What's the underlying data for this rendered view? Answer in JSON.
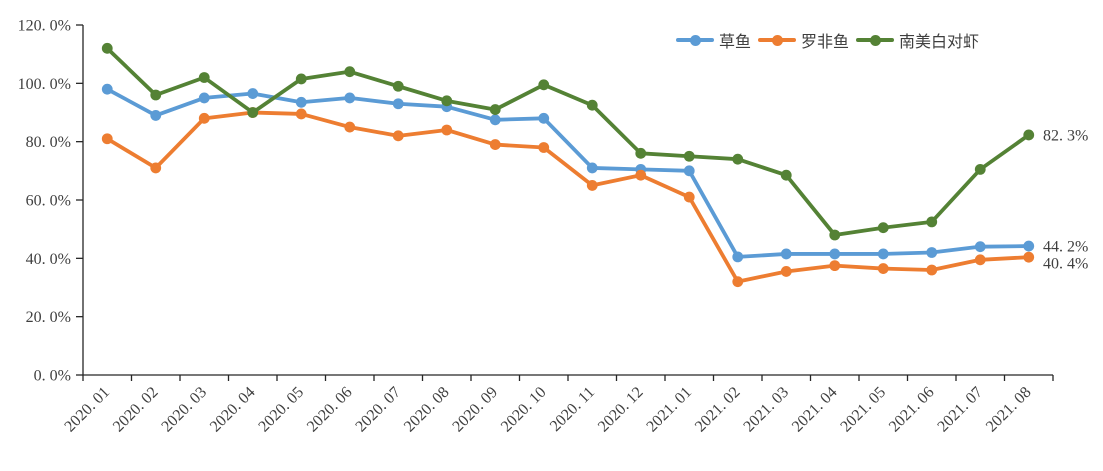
{
  "chart_data": {
    "type": "line",
    "categories": [
      "2020. 01",
      "2020. 02",
      "2020. 03",
      "2020. 04",
      "2020. 05",
      "2020. 06",
      "2020. 07",
      "2020. 08",
      "2020. 09",
      "2020. 10",
      "2020. 11",
      "2020. 12",
      "2021. 01",
      "2021. 02",
      "2021. 03",
      "2021. 04",
      "2021. 05",
      "2021. 06",
      "2021. 07",
      "2021. 08"
    ],
    "series": [
      {
        "name": "草鱼",
        "color": "#5B9BD5",
        "values": [
          98,
          89,
          95,
          96.5,
          93.5,
          95,
          93,
          92,
          87.5,
          88,
          71,
          70.5,
          70,
          40.5,
          41.5,
          41.5,
          41.5,
          42,
          44,
          44.2
        ],
        "end_label": "44. 2%"
      },
      {
        "name": "罗非鱼",
        "color": "#ED7D31",
        "values": [
          81,
          71,
          88,
          90,
          89.5,
          85,
          82,
          84,
          79,
          78,
          65,
          68.5,
          61,
          32,
          35.5,
          37.5,
          36.5,
          36,
          39.5,
          40.4
        ],
        "end_label": "40. 4%"
      },
      {
        "name": "南美白对虾",
        "color": "#548235",
        "values": [
          112,
          96,
          102,
          90,
          101.5,
          104,
          99,
          94,
          91,
          99.5,
          92.5,
          76,
          75,
          74,
          68.5,
          48,
          50.5,
          52.5,
          70.5,
          82.3
        ],
        "end_label": "82. 3%"
      }
    ],
    "ylim": [
      0,
      120
    ],
    "ytick_step": 20,
    "ytick_labels": [
      "0. 0%",
      "20. 0%",
      "40. 0%",
      "60. 0%",
      "80. 0%",
      "100. 0%",
      "120. 0%"
    ],
    "grid": false,
    "legend_position": "top-right",
    "x_label_rotation": -45
  }
}
